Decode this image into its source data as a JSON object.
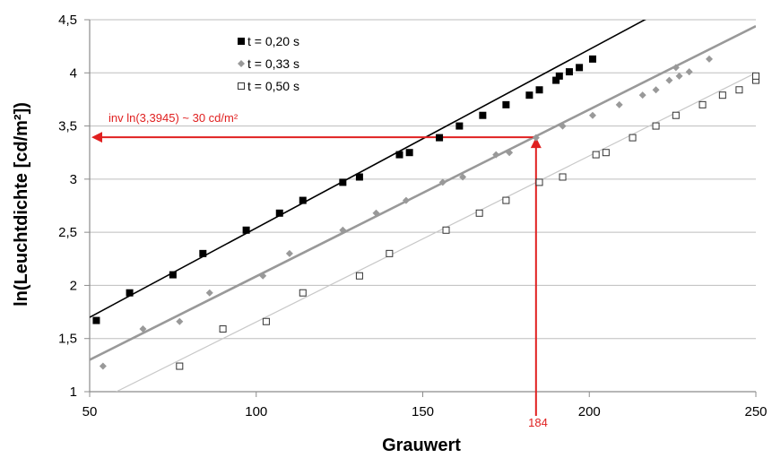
{
  "chart_data": {
    "type": "scatter",
    "xlabel": "Grauwert",
    "ylabel": "ln(Leuchtdichte [cd/m²])",
    "xlim": [
      50,
      250
    ],
    "ylim": [
      1,
      4.5
    ],
    "x_ticks": [
      "50",
      "100",
      "150",
      "200",
      "250"
    ],
    "y_ticks": [
      "1",
      "1,5",
      "2",
      "2,5",
      "3",
      "3,5",
      "4",
      "4,5"
    ],
    "grid": "horizontal",
    "legend_position": "top-left",
    "series": [
      {
        "name": "t = 0,20 s",
        "marker": "filled-square",
        "color": "#000000",
        "trendline": {
          "color": "#000000",
          "points": [
            [
              50,
              1.7
            ],
            [
              250,
              5.06
            ]
          ]
        },
        "points": [
          [
            52,
            1.67
          ],
          [
            62,
            1.93
          ],
          [
            75,
            2.1
          ],
          [
            84,
            2.3
          ],
          [
            97,
            2.52
          ],
          [
            107,
            2.68
          ],
          [
            114,
            2.8
          ],
          [
            126,
            2.97
          ],
          [
            131,
            3.02
          ],
          [
            143,
            3.23
          ],
          [
            146,
            3.25
          ],
          [
            155,
            3.39
          ],
          [
            161,
            3.5
          ],
          [
            168,
            3.6
          ],
          [
            175,
            3.7
          ],
          [
            182,
            3.79
          ],
          [
            185,
            3.84
          ],
          [
            190,
            3.93
          ],
          [
            191,
            3.97
          ],
          [
            194,
            4.01
          ],
          [
            197,
            4.05
          ],
          [
            201,
            4.13
          ]
        ]
      },
      {
        "name": "t = 0,33 s",
        "marker": "diamond",
        "color": "#999999",
        "trendline": {
          "color": "#999999",
          "points": [
            [
              50,
              1.3
            ],
            [
              250,
              4.44
            ]
          ]
        },
        "points": [
          [
            54,
            1.24
          ],
          [
            66,
            1.59
          ],
          [
            77,
            1.66
          ],
          [
            86,
            1.93
          ],
          [
            102,
            2.09
          ],
          [
            110,
            2.3
          ],
          [
            126,
            2.52
          ],
          [
            136,
            2.68
          ],
          [
            145,
            2.8
          ],
          [
            156,
            2.97
          ],
          [
            162,
            3.02
          ],
          [
            172,
            3.23
          ],
          [
            176,
            3.25
          ],
          [
            184,
            3.39
          ],
          [
            192,
            3.5
          ],
          [
            201,
            3.6
          ],
          [
            209,
            3.7
          ],
          [
            216,
            3.79
          ],
          [
            220,
            3.84
          ],
          [
            224,
            3.93
          ],
          [
            227,
            3.97
          ],
          [
            230,
            4.01
          ],
          [
            226,
            4.05
          ],
          [
            236,
            4.13
          ]
        ]
      },
      {
        "name": "t = 0,50 s",
        "marker": "open-square",
        "color": "#333333",
        "trendline": {
          "color": "#c8c8c8",
          "points": [
            [
              58,
              1
            ],
            [
              250,
              4.0
            ]
          ]
        },
        "points": [
          [
            77,
            1.24
          ],
          [
            90,
            1.59
          ],
          [
            103,
            1.66
          ],
          [
            114,
            1.93
          ],
          [
            131,
            2.09
          ],
          [
            140,
            2.3
          ],
          [
            157,
            2.52
          ],
          [
            167,
            2.68
          ],
          [
            175,
            2.8
          ],
          [
            185,
            2.97
          ],
          [
            192,
            3.02
          ],
          [
            202,
            3.23
          ],
          [
            205,
            3.25
          ],
          [
            213,
            3.39
          ],
          [
            220,
            3.5
          ],
          [
            226,
            3.6
          ],
          [
            234,
            3.7
          ],
          [
            240,
            3.79
          ],
          [
            245,
            3.84
          ],
          [
            250,
            3.93
          ],
          [
            250,
            3.97
          ]
        ]
      }
    ],
    "annotations": {
      "label": "inv ln(3,3945) ~ 30 cd/m²",
      "x_marker_label": "184",
      "color": "#e02020",
      "x_value": 184,
      "y_value": 3.3945
    }
  }
}
